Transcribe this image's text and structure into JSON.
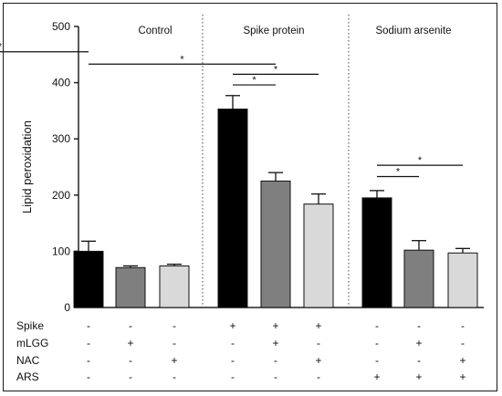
{
  "chart_data": {
    "type": "bar",
    "ylabel": "Lipid peroxidation",
    "ylim": [
      0,
      500
    ],
    "yticks": [
      0,
      100,
      200,
      300,
      400,
      500
    ],
    "groups": [
      {
        "label": "Control",
        "bars": [
          {
            "value": 100,
            "error": 18,
            "fill": "#000000"
          },
          {
            "value": 71,
            "error": 3,
            "fill": "#7f7f7f"
          },
          {
            "value": 74,
            "error": 3,
            "fill": "#d9d9d9"
          }
        ]
      },
      {
        "label": "Spike protein",
        "bars": [
          {
            "value": 353,
            "error": 24,
            "fill": "#000000"
          },
          {
            "value": 225,
            "error": 15,
            "fill": "#7f7f7f"
          },
          {
            "value": 184,
            "error": 18,
            "fill": "#d9d9d9"
          }
        ]
      },
      {
        "label": "Sodium arsenite",
        "bars": [
          {
            "value": 195,
            "error": 13,
            "fill": "#000000"
          },
          {
            "value": 102,
            "error": 17,
            "fill": "#7f7f7f"
          },
          {
            "value": 97,
            "error": 8,
            "fill": "#d9d9d9"
          }
        ]
      }
    ],
    "significance": [
      {
        "from": 0,
        "to": 9,
        "y": 455,
        "label": "*"
      },
      {
        "from": 0,
        "to": 4,
        "y": 433,
        "label": "*"
      },
      {
        "from": 3,
        "to": 5,
        "y": 415,
        "label": "*"
      },
      {
        "from": 3,
        "to": 4,
        "y": 396,
        "label": "*"
      },
      {
        "from": 6,
        "to": 8,
        "y": 253,
        "label": "*"
      },
      {
        "from": 6,
        "to": 7,
        "y": 233,
        "label": "*"
      }
    ],
    "conditions": [
      {
        "label": "Spike",
        "marks": [
          "-",
          "-",
          "-",
          "+",
          "+",
          "+",
          "-",
          "-",
          "-"
        ]
      },
      {
        "label": "mLGG",
        "marks": [
          "-",
          "+",
          "-",
          "-",
          "+",
          "-",
          "-",
          "+",
          "-"
        ]
      },
      {
        "label": "NAC",
        "marks": [
          "-",
          "-",
          "+",
          "-",
          "-",
          "+",
          "-",
          "-",
          "+"
        ]
      },
      {
        "label": "ARS",
        "marks": [
          "-",
          "-",
          "-",
          "-",
          "-",
          "-",
          "+",
          "+",
          "+"
        ]
      }
    ]
  }
}
